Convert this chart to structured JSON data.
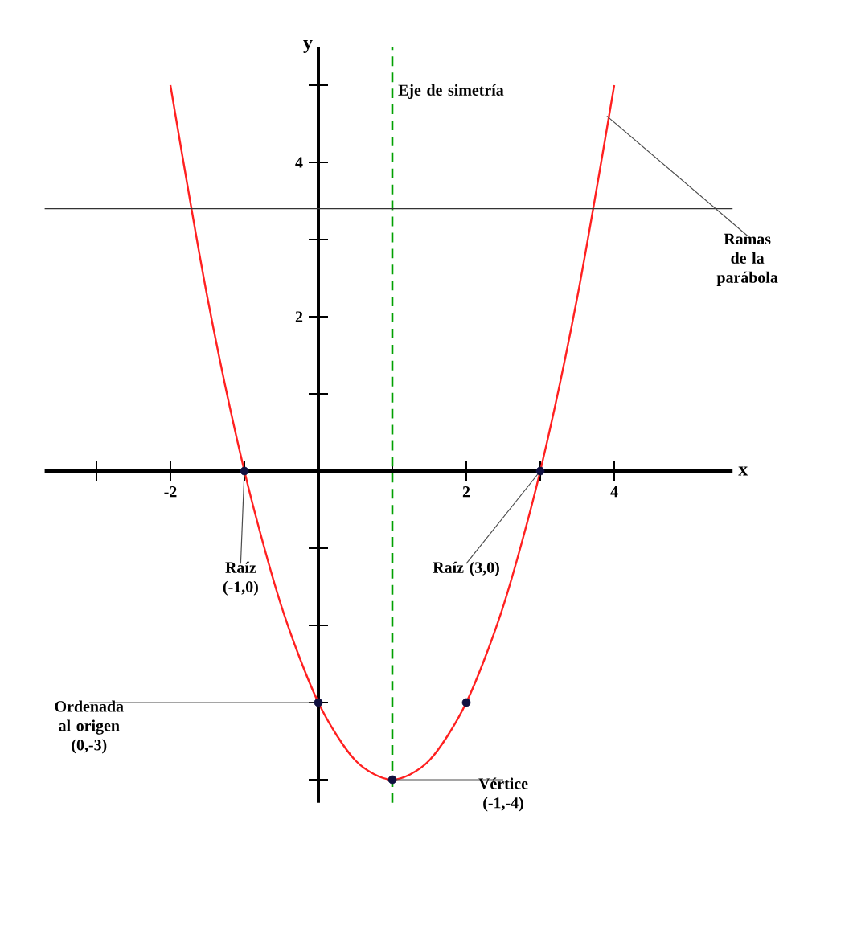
{
  "chart_data": {
    "type": "line",
    "xlabel": "x",
    "ylabel": "y",
    "xlim": [
      -3.7,
      5.6
    ],
    "ylim": [
      -4.3,
      5.5
    ],
    "xticks": [
      {
        "value": -3,
        "label": null
      },
      -2,
      {
        "value": -1,
        "label": null
      },
      {
        "value": 1,
        "label": null
      },
      2,
      {
        "value": 3,
        "label": null
      },
      4
    ],
    "yticks": [
      {
        "value": -4,
        "label": null
      },
      {
        "value": -3,
        "label": null
      },
      {
        "value": -2,
        "label": null
      },
      {
        "value": -1,
        "label": null
      },
      {
        "value": 1,
        "label": null
      },
      2,
      {
        "value": 3,
        "label": null
      },
      4,
      {
        "value": 5,
        "label": null
      }
    ],
    "series": [
      {
        "color": "#ff2020",
        "x": [
          -2,
          -1.5,
          -1,
          -0.5,
          0,
          0.5,
          1,
          1.5,
          2,
          2.5,
          3,
          3.5,
          4
        ],
        "values": [
          5,
          2.25,
          0,
          -1.75,
          -3,
          -3.75,
          -4,
          -3.75,
          -3,
          -1.75,
          0,
          2.25,
          5
        ]
      },
      {
        "type": "scatter",
        "color": "#101040",
        "marker": "circle",
        "x": [
          -1,
          3,
          0,
          2,
          1
        ],
        "values": [
          0,
          0,
          -3,
          -3,
          -4
        ]
      }
    ],
    "ref_lines": [
      {
        "axis": "x",
        "value": 1,
        "label": "Eje de simetría",
        "color": "#00a000",
        "line_style": "dashed"
      },
      {
        "axis": "y",
        "value": 3.4,
        "color": "#333333",
        "line_style": "solid"
      }
    ],
    "annotations": [
      {
        "text": "Raíz (-1,0)",
        "x": -1,
        "y": 0
      },
      {
        "text": "Raíz (3,0)",
        "x": 3,
        "y": 0
      },
      {
        "text": "Ordenada al origen (0,-3)",
        "x": 0,
        "y": -3
      },
      {
        "text": "Vértice (-1,-4)",
        "x": 1,
        "y": -4
      },
      {
        "text": "Ramas de la parábola",
        "x": 3.9,
        "y": 4.6
      }
    ]
  }
}
